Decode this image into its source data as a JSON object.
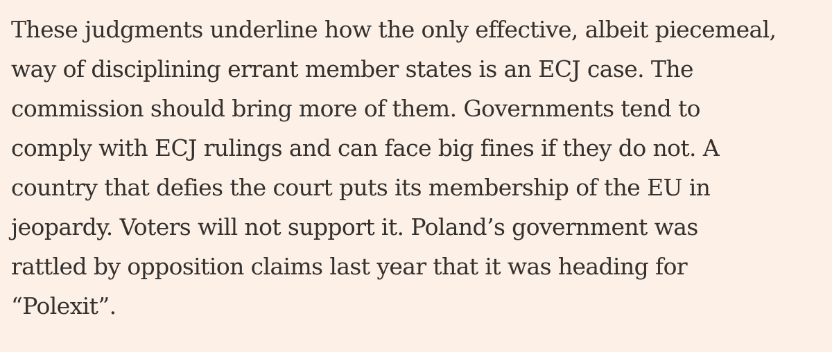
{
  "article": {
    "paragraph_lines": [
      "These judgments underline how the only effective, albeit piecemeal,",
      "way of disciplining errant member states is an ECJ case. The",
      "commission should bring more of them. Governments tend to",
      "comply with ECJ rulings and can face big fines if they do not. A",
      "country that defies the court puts its membership of the EU in",
      "jeopardy. Voters will not support it. Poland’s government was",
      "rattled by opposition claims last year that it was heading for",
      "“Polexit”."
    ]
  },
  "colors": {
    "background": "#fdf0e6",
    "text": "#33302e"
  }
}
